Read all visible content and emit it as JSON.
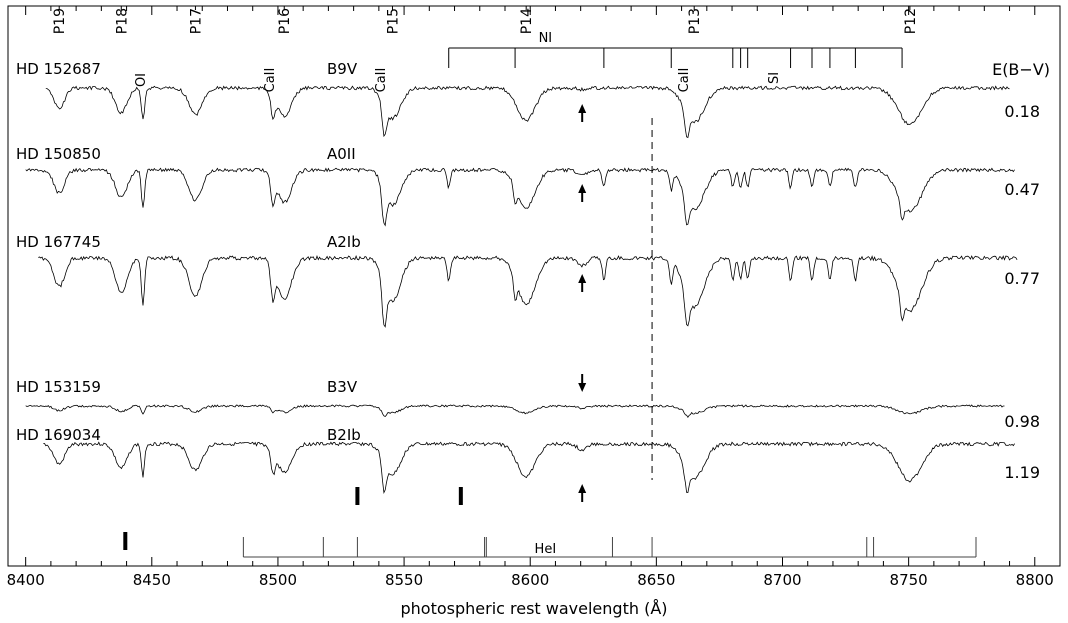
{
  "chart_data": {
    "type": "line",
    "xlabel": "photospheric rest wavelength (Å)",
    "xlim": [
      8393,
      8810
    ],
    "x_ticks": [
      "8400",
      "8450",
      "8500",
      "8550",
      "8600",
      "8650",
      "8700",
      "8750",
      "8800"
    ],
    "x_tick_values": [
      8400,
      8450,
      8500,
      8550,
      8600,
      8650,
      8700,
      8750,
      8800
    ],
    "paschen_labels": [
      {
        "label": "P19",
        "x": 8413.3
      },
      {
        "label": "P18",
        "x": 8437.9
      },
      {
        "label": "P17",
        "x": 8467.3
      },
      {
        "label": "P16",
        "x": 8502.5
      },
      {
        "label": "P15",
        "x": 8545.4
      },
      {
        "label": "P14",
        "x": 8598.4
      },
      {
        "label": "P13",
        "x": 8665.0
      },
      {
        "label": "P12",
        "x": 8750.5
      }
    ],
    "line_ids": [
      {
        "label": "OI",
        "x": 8446.5
      },
      {
        "label": "CaII",
        "x": 8498.0
      },
      {
        "label": "CaII",
        "x": 8542.1
      },
      {
        "label": "CaII",
        "x": 8662.1
      },
      {
        "label": "SI",
        "x": 8694.6
      }
    ],
    "ni_label": "NI",
    "ni_lines": [
      8567.7,
      8594.0,
      8629.2,
      8655.9,
      8680.3,
      8683.4,
      8686.2,
      8703.2,
      8711.7,
      8718.8,
      8728.9,
      8747.4
    ],
    "hei_label": "HeI",
    "hei_lines": [
      8486.3,
      8518.0,
      8531.5,
      8581.9,
      8582.6,
      8632.6,
      8648.3,
      8733.4,
      8736.1,
      8776.7
    ],
    "ebv_header": "E(B−V)",
    "dib_marker_x": 8620.6,
    "dashed_line_x": 8648.3,
    "band_markers_x": [
      8439.5,
      8531.5,
      8572.5
    ],
    "series": [
      {
        "star": "HD 152687",
        "sptype": "B9V",
        "ebv": "0.18",
        "offset": 0,
        "x_start": 8408,
        "x_end": 8790,
        "depth": 0.7,
        "noise": 1.0,
        "dib": 0.1,
        "arrow": "up"
      },
      {
        "star": "HD 150850",
        "sptype": "A0II",
        "ebv": "0.47",
        "offset": 1,
        "x_start": 8400,
        "x_end": 8792,
        "depth": 0.8,
        "noise": 1.0,
        "dib": 0.35,
        "arrow": "up"
      },
      {
        "star": "HD 167745",
        "sptype": "A2Ib",
        "ebv": "0.77",
        "offset": 2,
        "x_start": 8405,
        "x_end": 8793,
        "depth": 1.0,
        "noise": 1.1,
        "dib": 0.55,
        "arrow": "up"
      },
      {
        "star": "HD 153159",
        "sptype": "B3V",
        "ebv": "0.98",
        "offset": 3,
        "x_start": 8400,
        "x_end": 8788,
        "depth": 0.15,
        "noise": 0.6,
        "dib": 0.15,
        "arrow": "down"
      },
      {
        "star": "HD 169034",
        "sptype": "B2Ib",
        "ebv": "1.19",
        "offset": 4,
        "x_start": 8407,
        "x_end": 8792,
        "depth": 0.7,
        "noise": 1.0,
        "dib": 0.45,
        "arrow": "up"
      }
    ]
  }
}
